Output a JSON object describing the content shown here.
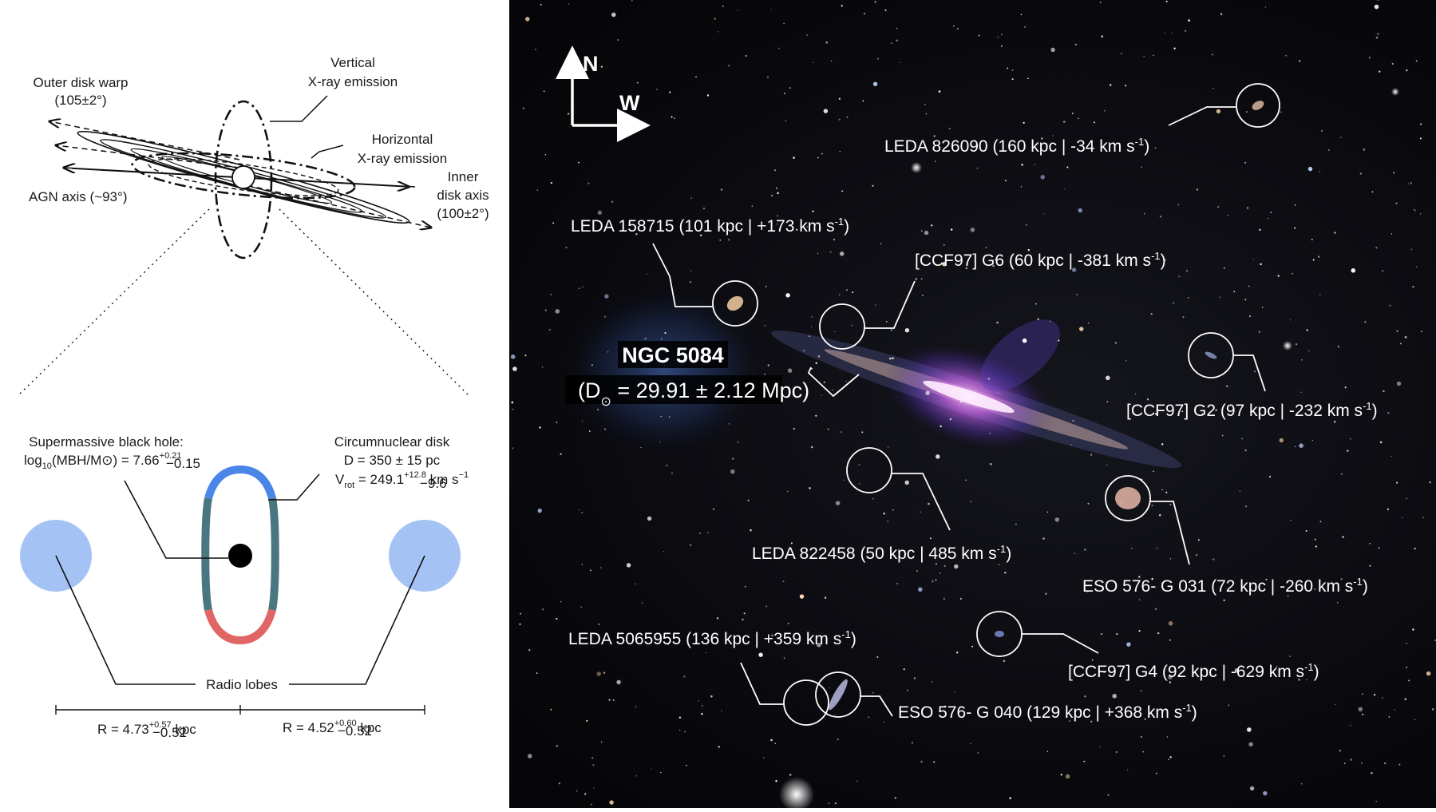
{
  "left": {
    "warp_label": "Outer disk warp",
    "warp_value": "(105±2°)",
    "vertical_label_1": "Vertical",
    "vertical_label_2": "X-ray emission",
    "horizontal_label_1": "Horizontal",
    "horizontal_label_2": "X-ray emission",
    "agn_axis": "AGN axis (~93°)",
    "inner_axis_1": "Inner",
    "inner_axis_2": "disk axis",
    "inner_axis_3": "(100±2°)",
    "smbh_title": "Supermassive black hole:",
    "smbh_log": "log",
    "smbh_sub": "10",
    "smbh_mid": "(MBH/M⊙) = 7.66",
    "smbh_sup": "+0.21",
    "smbh_inf": "−0.15",
    "cnd_title": "Circumnuclear disk",
    "cnd_d": "D = 350 ± 15 pc",
    "cnd_v": "V",
    "cnd_v_sub": "rot",
    "cnd_v_val": " = 249.1",
    "cnd_v_sup": "+12.8",
    "cnd_v_inf": "−9.6",
    "cnd_v_unit": " km s",
    "cnd_v_exp": "−1",
    "radio_lobes": "Radio lobes",
    "r_left": "R = 4.73",
    "r_left_sup": "+0.57",
    "r_left_inf": "−0.52",
    "r_right": "R = 4.52",
    "r_right_sup": "+0.60",
    "r_right_inf": "−0.52",
    "r_unit": " kpc",
    "colors": {
      "blue": "#4a86e8",
      "teal": "#4a7680",
      "red": "#e06666",
      "lobe": "#a4c2f4"
    }
  },
  "right": {
    "compass_n": "N",
    "compass_w": "W",
    "ngc_name": "NGC 5084",
    "ngc_dist_pre": "(D",
    "ngc_dist_sym": "⊙",
    "ngc_dist_val": " = 29.91 ± 2.12  Mpc)",
    "galaxies": [
      {
        "name": "LEDA 826090 (160 kpc  | -34 km s",
        "exp": "-1",
        "close": ")"
      },
      {
        "name": "LEDA 158715 (101 kpc  | +173 km s",
        "exp": "-1",
        "close": ")"
      },
      {
        "name": "[CCF97] G6 (60 kpc  | -381 km s",
        "exp": "-1",
        "close": ")"
      },
      {
        "name": "[CCF97] G2 (97 kpc  | -232 km s",
        "exp": "-1",
        "close": ")"
      },
      {
        "name": "LEDA 822458 (50 kpc  | 485 km s",
        "exp": "-1",
        "close": ")"
      },
      {
        "name": "ESO 576- G 031 (72 kpc  | -260 km s",
        "exp": "-1",
        "close": ")"
      },
      {
        "name": "LEDA 5065955  (136 kpc  | +359 km s",
        "exp": "-1",
        "close": ")"
      },
      {
        "name": "[CCF97] G4 (92 kpc  | -629 km s",
        "exp": "-1",
        "close": ")"
      },
      {
        "name": "ESO 576- G 040 (129 kpc  | +368 km s",
        "exp": "-1",
        "close": ")"
      }
    ]
  }
}
